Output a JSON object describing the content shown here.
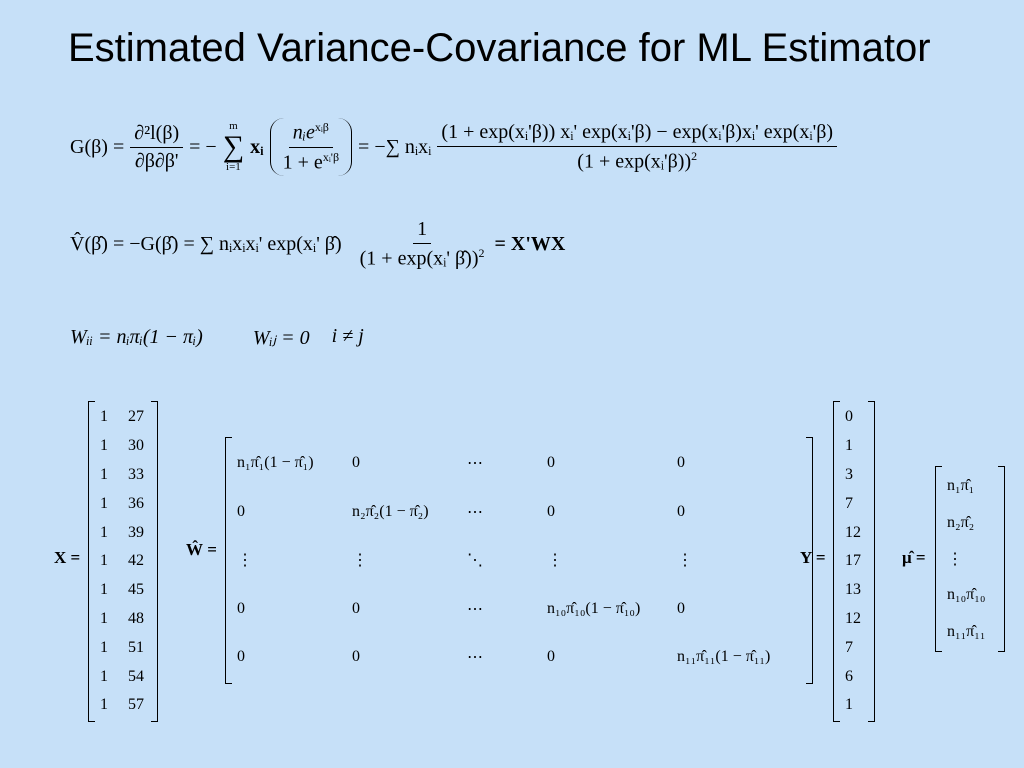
{
  "title": "Estimated Variance-Covariance for ML Estimator",
  "eq1": {
    "lhs": "G(β) =",
    "d_num": "∂²l(β)",
    "d_den": "∂β∂β'",
    "eq_a": "= −",
    "sum_top": "m",
    "sum": "∑",
    "sum_bot": "i=1",
    "x": "xᵢ",
    "f_num_base": "nᵢe",
    "f_num_exp": "xᵢβ",
    "f_den_base": "1 + e",
    "f_den_exp": "xᵢ'β",
    "eq_b": "= −∑ nᵢxᵢ",
    "g_num": "(1 + exp(xᵢ'β)) xᵢ' exp(xᵢ'β) − exp(xᵢ'β)xᵢ' exp(xᵢ'β)",
    "g_den": "(1 + exp(xᵢ'β))",
    "g_den_exp": "2"
  },
  "eq2": {
    "lhs": "V̂(β̂) = −G(β̂) = ∑ nᵢxᵢxᵢ' exp(xᵢ' β̂)",
    "f_num": "1",
    "f_den": "(1 + exp(xᵢ' β̂))",
    "f_den_exp": "2",
    "rhs": "= X'WX"
  },
  "eq3": {
    "wii": "Wᵢᵢ = nᵢπᵢ(1 − πᵢ)",
    "wij": "Wᵢⱼ = 0",
    "cond": "i ≠ j"
  },
  "matrices": [
    {
      "label": "X =",
      "rows": [
        [
          1,
          27
        ],
        [
          1,
          30
        ],
        [
          1,
          33
        ],
        [
          1,
          36
        ],
        [
          1,
          39
        ],
        [
          1,
          42
        ],
        [
          1,
          45
        ],
        [
          1,
          48
        ],
        [
          1,
          51
        ],
        [
          1,
          54
        ],
        [
          1,
          57
        ]
      ]
    },
    {
      "label": "Ŵ =",
      "rows": [
        [
          "n₁π̂₁(1 − π̂₁)",
          "0",
          "⋯",
          "0",
          "0"
        ],
        [
          "0",
          "n₂π̂₂(1 − π̂₂)",
          "⋯",
          "0",
          "0"
        ],
        [
          "⋮",
          "⋮",
          "⋱",
          "⋮",
          "⋮"
        ],
        [
          "0",
          "0",
          "⋯",
          "n₁₀π̂₁₀(1 − π̂₁₀)",
          "0"
        ],
        [
          "0",
          "0",
          "⋯",
          "0",
          "n₁₁π̂₁₁(1 − π̂₁₁)"
        ]
      ]
    },
    {
      "label": "Y =",
      "rows": [
        [
          0
        ],
        [
          1
        ],
        [
          3
        ],
        [
          7
        ],
        [
          12
        ],
        [
          17
        ],
        [
          13
        ],
        [
          12
        ],
        [
          7
        ],
        [
          6
        ],
        [
          1
        ]
      ]
    },
    {
      "label": "μ̂ =",
      "rows": [
        [
          "n₁π̂₁"
        ],
        [
          "n₂π̂₂"
        ],
        [
          "⋮"
        ],
        [
          "n₁₀π̂₁₀"
        ],
        [
          "n₁₁π̂₁₁"
        ]
      ]
    }
  ]
}
